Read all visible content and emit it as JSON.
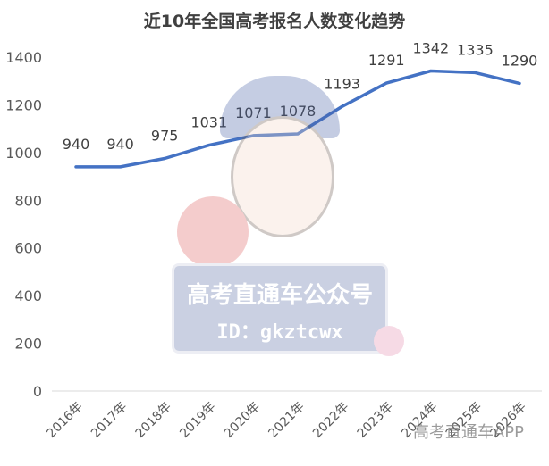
{
  "chart_data": {
    "type": "line",
    "title": "近10年全国高考报名人数变化趋势",
    "categories": [
      "2016年",
      "2017年",
      "2018年",
      "2019年",
      "2020年",
      "2021年",
      "2022年",
      "2023年",
      "2024年",
      "2025年",
      "2026年"
    ],
    "series": [
      {
        "values": [
          940,
          940,
          975,
          1031,
          1071,
          1078,
          1193,
          1291,
          1342,
          1335,
          1290
        ]
      }
    ],
    "xlabel": "",
    "ylabel": "",
    "ylim": [
      0,
      1400
    ],
    "yticks": [
      0,
      200,
      400,
      600,
      800,
      1000,
      1200,
      1400
    ],
    "grid": false,
    "legend": "none",
    "line_color": "#4472c4"
  },
  "watermark": {
    "line1": "高考直通车公众号",
    "line2": "ID：gkztcwx",
    "footer": "高考直通车APP"
  }
}
